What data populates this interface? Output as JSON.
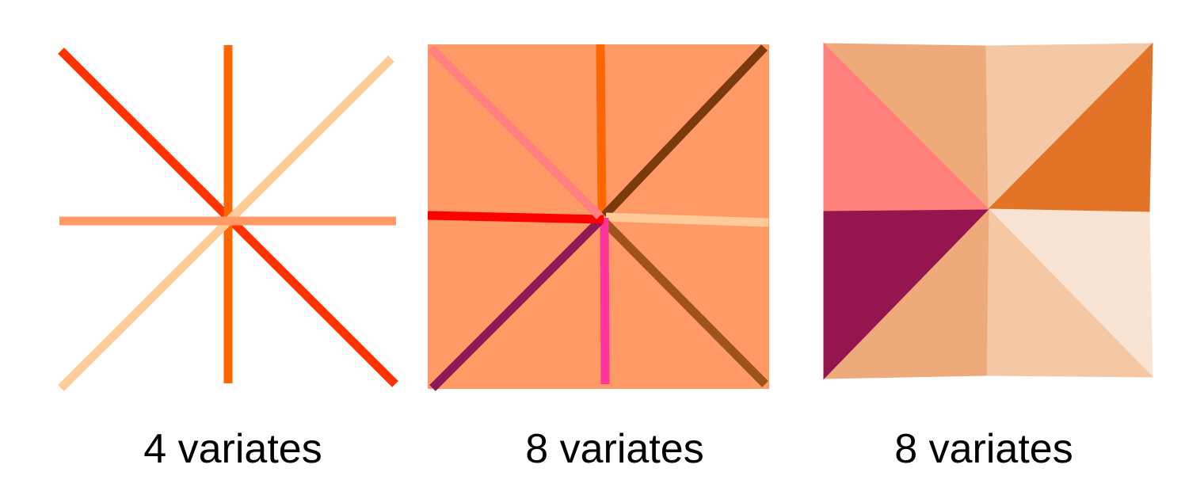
{
  "panels": [
    {
      "caption": "4 variates",
      "lines": [
        {
          "name": "diagonal-down-line",
          "color": "#FF3300"
        },
        {
          "name": "vertical-line",
          "color": "#FF6600"
        },
        {
          "name": "diagonal-up-line",
          "color": "#FFCC99"
        },
        {
          "name": "horizontal-line",
          "color": "#FF9966"
        }
      ]
    },
    {
      "caption": "8 variates",
      "background": "#FF9966",
      "spokes": [
        {
          "name": "spoke-up",
          "color": "#FF6600"
        },
        {
          "name": "spoke-up-right",
          "color": "#7A3A0E"
        },
        {
          "name": "spoke-right",
          "color": "#FFCC99"
        },
        {
          "name": "spoke-down-right",
          "color": "#A0521C"
        },
        {
          "name": "spoke-down",
          "color": "#FF3399"
        },
        {
          "name": "spoke-down-left",
          "color": "#8B1A55"
        },
        {
          "name": "spoke-left",
          "color": "#FF0000"
        },
        {
          "name": "spoke-up-left",
          "color": "#FF8080"
        }
      ]
    },
    {
      "caption": "8 variates",
      "triangles": [
        {
          "name": "triangle-top-left-upper",
          "color": "#EEAA7B"
        },
        {
          "name": "triangle-top-right-upper",
          "color": "#F4C7A5"
        },
        {
          "name": "triangle-right-upper",
          "color": "#E37326"
        },
        {
          "name": "triangle-right-lower",
          "color": "#F9E3D3"
        },
        {
          "name": "triangle-bottom-right",
          "color": "#F4C7A5"
        },
        {
          "name": "triangle-bottom-left",
          "color": "#EEAA7B"
        },
        {
          "name": "triangle-left-lower",
          "color": "#95154F"
        },
        {
          "name": "triangle-left-upper",
          "color": "#FF807B"
        }
      ]
    }
  ]
}
